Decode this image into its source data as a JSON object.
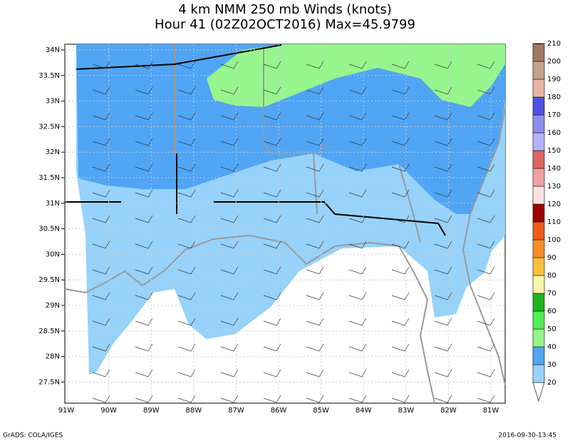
{
  "title": {
    "line1": "4 km NMM 250 mb Winds (knots)",
    "line2": "Hour 41 (02Z02OCT2016) Max=45.9799"
  },
  "map": {
    "lat_labels": [
      "34N",
      "33.5N",
      "33N",
      "32.5N",
      "32N",
      "31.5N",
      "31N",
      "30.5N",
      "30N",
      "29.5N",
      "29N",
      "28.5N",
      "28N",
      "27.5N"
    ],
    "lon_labels": [
      "91W",
      "90W",
      "89W",
      "88W",
      "87W",
      "86W",
      "85W",
      "84W",
      "83W",
      "82W",
      "81W"
    ]
  },
  "colorbar": {
    "levels": [
      20,
      30,
      40,
      50,
      60,
      70,
      80,
      90,
      100,
      110,
      120,
      130,
      140,
      150,
      160,
      170,
      180,
      190,
      200,
      210
    ],
    "colors": [
      "#ffffff",
      "#96d2fa",
      "#50a5f5",
      "#96f58c",
      "#50f050",
      "#1eb41e",
      "#faf5aa",
      "#fabe3c",
      "#fa8c28",
      "#f05a1e",
      "#a00000",
      "#fce1e1",
      "#f0a0a0",
      "#e06464",
      "#b4b4fa",
      "#8c8cf0",
      "#5050e6",
      "#e6b4a0",
      "#c8a08c",
      "#a07864",
      "#785040"
    ]
  },
  "footer": {
    "left": "GrADS: COLA/IGES",
    "right": "2016-09-30-13:45"
  }
}
